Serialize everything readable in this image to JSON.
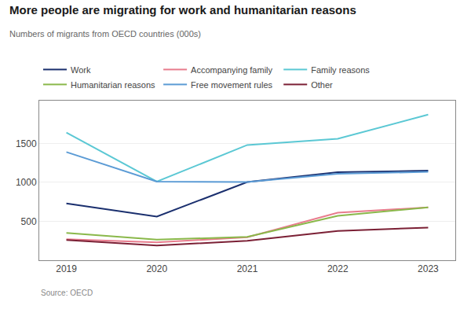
{
  "chart_data": {
    "type": "line",
    "title": "More people are migrating for work and humanitarian reasons",
    "subtitle": "Numbers of migrants from OECD countries (000s)",
    "annotations": [
      "Source: OECD"
    ],
    "x": [
      2019,
      2020,
      2021,
      2022,
      2023
    ],
    "series": [
      {
        "name": "Work",
        "color": "#1a2f6e",
        "values": [
          730,
          560,
          1005,
          1130,
          1150
        ]
      },
      {
        "name": "Accompanying family",
        "color": "#e87c8d",
        "values": [
          270,
          230,
          295,
          610,
          680
        ]
      },
      {
        "name": "Family reasons",
        "color": "#5bc8d4",
        "values": [
          1640,
          1010,
          1480,
          1560,
          1870
        ]
      },
      {
        "name": "Humanitarian reasons",
        "color": "#8ab84a",
        "values": [
          350,
          265,
          300,
          570,
          680
        ]
      },
      {
        "name": "Free movement rules",
        "color": "#5b9bd5",
        "values": [
          1390,
          1010,
          1005,
          1110,
          1135
        ]
      },
      {
        "name": "Other",
        "color": "#7b2035",
        "values": [
          260,
          190,
          250,
          375,
          420
        ]
      }
    ],
    "xlim": [
      2018.7,
      2023.3
    ],
    "xticks": [
      2019,
      2020,
      2021,
      2022,
      2023
    ],
    "ylim": [
      0,
      2050
    ],
    "yticks": [
      500,
      1000,
      1500
    ],
    "grid": true,
    "legend": "top"
  }
}
